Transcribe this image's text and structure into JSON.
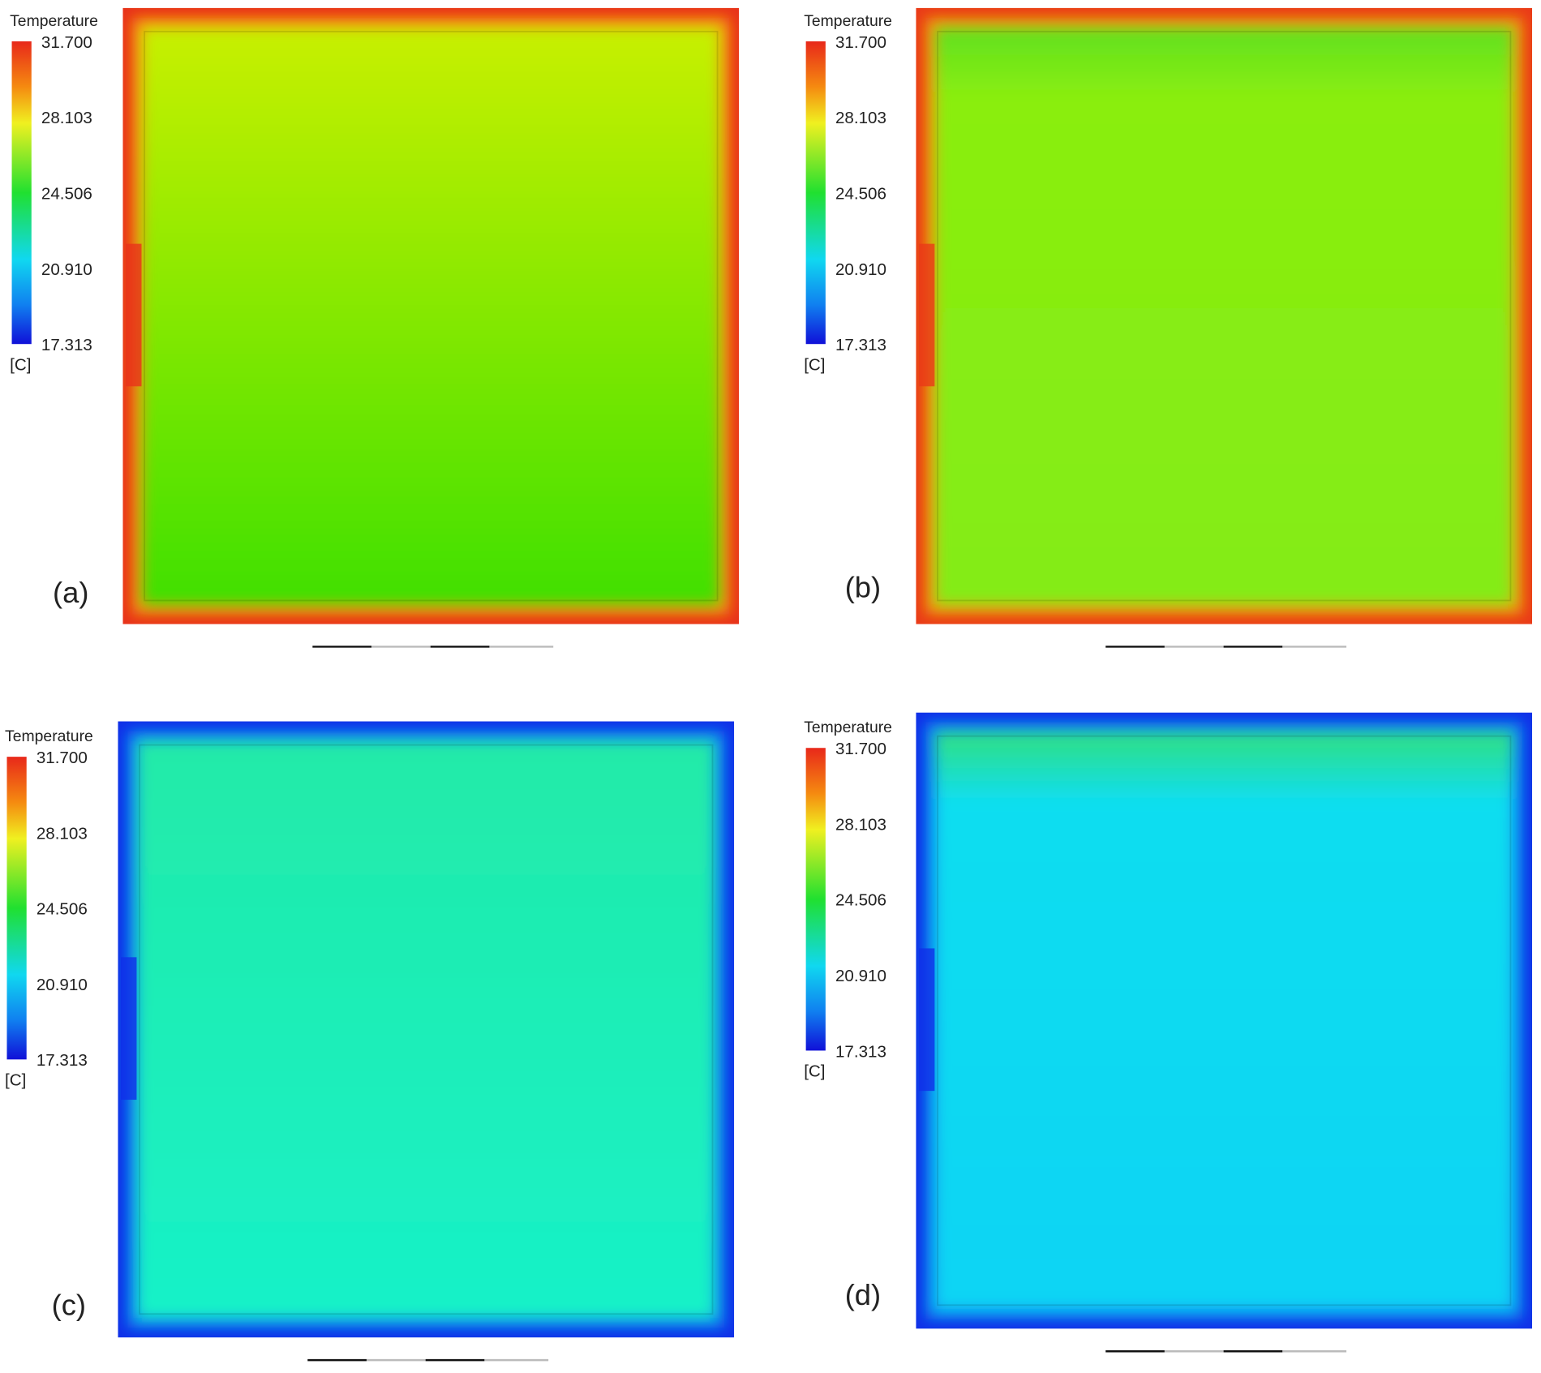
{
  "panels": [
    {
      "label": "(a)",
      "legend": {
        "title": "Temperature",
        "ticks": [
          "31.700",
          "28.103",
          "24.506",
          "20.910",
          "17.313"
        ],
        "unit": "[C]"
      }
    },
    {
      "label": "(b)",
      "legend": {
        "title": "Temperature",
        "ticks": [
          "31.700",
          "28.103",
          "24.506",
          "20.910",
          "17.313"
        ],
        "unit": "[C]"
      }
    },
    {
      "label": "(c)",
      "legend": {
        "title": "Temperature",
        "ticks": [
          "31.700",
          "28.103",
          "24.506",
          "20.910",
          "17.313"
        ],
        "unit": "[C]"
      }
    },
    {
      "label": "(d)",
      "legend": {
        "title": "Temperature",
        "ticks": [
          "31.700",
          "28.103",
          "24.506",
          "20.910",
          "17.313"
        ],
        "unit": "[C]"
      }
    }
  ]
}
